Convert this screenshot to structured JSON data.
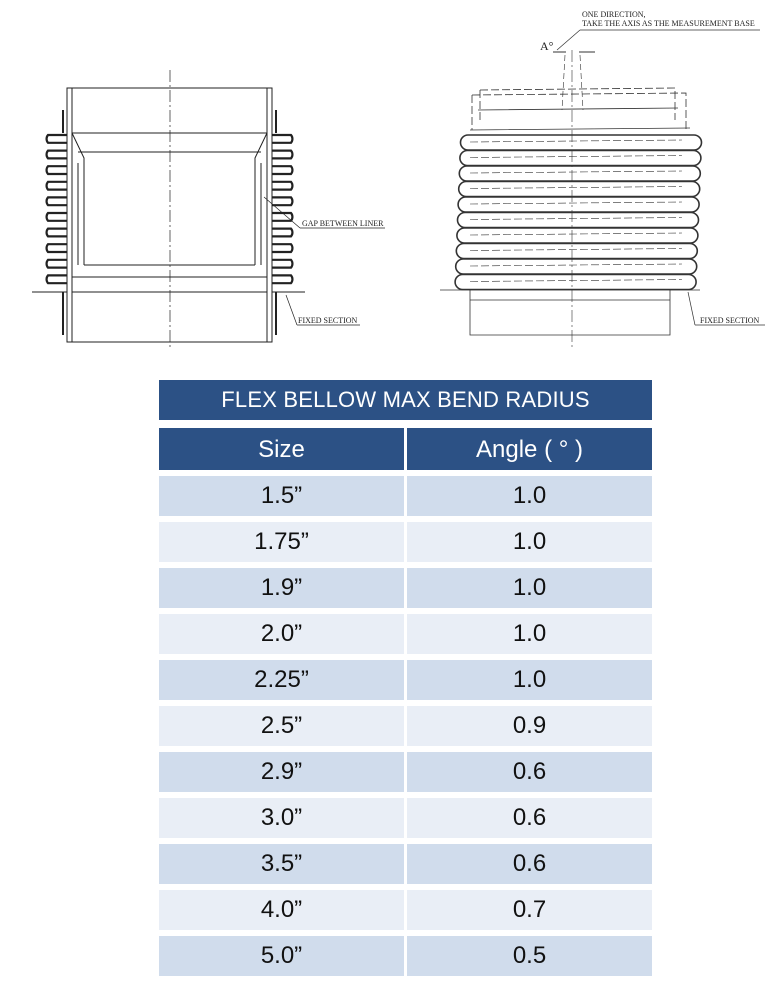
{
  "drawings": {
    "left_labels": {
      "gap": "GAP BETWEEN LINER",
      "fixed": "FIXED SECTION"
    },
    "right_labels": {
      "note_line1": "ONE DIRECTION,",
      "note_line2": "TAKE THE AXIS AS THE MEASUREMENT BASE",
      "angle": "A°",
      "fixed": "FIXED SECTION"
    }
  },
  "table": {
    "title": "FLEX BELLOW MAX BEND RADIUS",
    "headers": [
      "Size",
      "Angle (  ° )"
    ],
    "rows": [
      [
        "1.5”",
        "1.0"
      ],
      [
        "1.75”",
        "1.0"
      ],
      [
        "1.9”",
        "1.0"
      ],
      [
        "2.0”",
        "1.0"
      ],
      [
        "2.25”",
        "1.0"
      ],
      [
        "2.5”",
        "0.9"
      ],
      [
        "2.9”",
        "0.6"
      ],
      [
        "3.0”",
        "0.6"
      ],
      [
        "3.5”",
        "0.6"
      ],
      [
        "4.0”",
        "0.7"
      ],
      [
        "5.0”",
        "0.5"
      ]
    ],
    "colors": {
      "header": "#2c5185",
      "row_dark": "#d0dcec",
      "row_light": "#e9eef6"
    }
  }
}
